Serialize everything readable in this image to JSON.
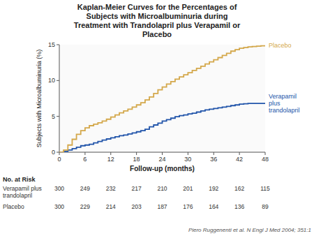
{
  "chart_data": {
    "type": "step",
    "title": "Kaplan-Meier Curves for the Percentages of\nSubjects with Microalbuminuria during\nTreatment with Trandolapril plus Verapamil or\nPlacebo",
    "x_label": "Follow-up (months)",
    "y_label": "Subjects with Microalbuminuria (%)",
    "x": [
      0,
      1,
      2,
      3,
      4,
      5,
      6,
      7,
      8,
      9,
      10,
      11,
      12,
      13,
      14,
      15,
      16,
      17,
      18,
      19,
      20,
      21,
      22,
      23,
      24,
      25,
      26,
      27,
      28,
      29,
      30,
      31,
      32,
      33,
      34,
      35,
      36,
      37,
      38,
      39,
      40,
      41,
      42,
      43,
      44,
      45,
      46,
      47,
      48
    ],
    "series": [
      {
        "name": "Verapamil\nplus\ntrandolapril",
        "color": "#2255aa",
        "values": [
          0,
          0.1,
          0.3,
          0.5,
          0.7,
          0.9,
          1.0,
          1.1,
          1.3,
          1.5,
          1.7,
          1.85,
          2.0,
          2.15,
          2.3,
          2.4,
          2.55,
          2.7,
          2.85,
          3.0,
          3.2,
          3.55,
          3.8,
          4.05,
          4.35,
          4.55,
          4.75,
          4.95,
          5.1,
          5.2,
          5.35,
          5.45,
          5.6,
          5.75,
          5.9,
          6.0,
          6.1,
          6.2,
          6.3,
          6.4,
          6.5,
          6.6,
          6.7,
          6.75,
          6.8,
          6.8,
          6.8,
          6.8,
          6.8
        ]
      },
      {
        "name": "Placebo",
        "color": "#d4a84b",
        "values": [
          0,
          0.3,
          1.0,
          1.8,
          2.5,
          3.0,
          3.4,
          3.7,
          3.9,
          4.1,
          4.35,
          4.6,
          4.9,
          5.2,
          5.5,
          5.75,
          6.0,
          6.3,
          6.6,
          6.9,
          7.3,
          7.7,
          8.2,
          8.7,
          9.1,
          9.5,
          9.85,
          10.2,
          10.5,
          10.8,
          11.1,
          11.4,
          11.7,
          12.0,
          12.3,
          12.6,
          12.9,
          13.2,
          13.5,
          13.8,
          14.1,
          14.3,
          14.5,
          14.6,
          14.7,
          14.75,
          14.8,
          14.85,
          14.9
        ]
      }
    ],
    "xlim": [
      0,
      48
    ],
    "ylim": [
      0,
      15
    ],
    "xticks": [
      0,
      6,
      12,
      18,
      24,
      30,
      36,
      42,
      48
    ],
    "yticks": [
      0,
      5,
      10,
      15
    ],
    "grid": false,
    "at_risk": {
      "label": "No. at Risk",
      "months": [
        0,
        6,
        12,
        18,
        24,
        30,
        36,
        42,
        48
      ],
      "rows": [
        {
          "name": "Verapamil plus\ntrandolapril",
          "values": [
            300,
            249,
            232,
            217,
            210,
            201,
            192,
            162,
            115
          ]
        },
        {
          "name": "Placebo",
          "values": [
            300,
            229,
            214,
            203,
            187,
            176,
            164,
            136,
            89
          ]
        }
      ]
    },
    "footnote": "Piero Ruggenenti et al. N Engl J Med 2004; 351:1"
  }
}
